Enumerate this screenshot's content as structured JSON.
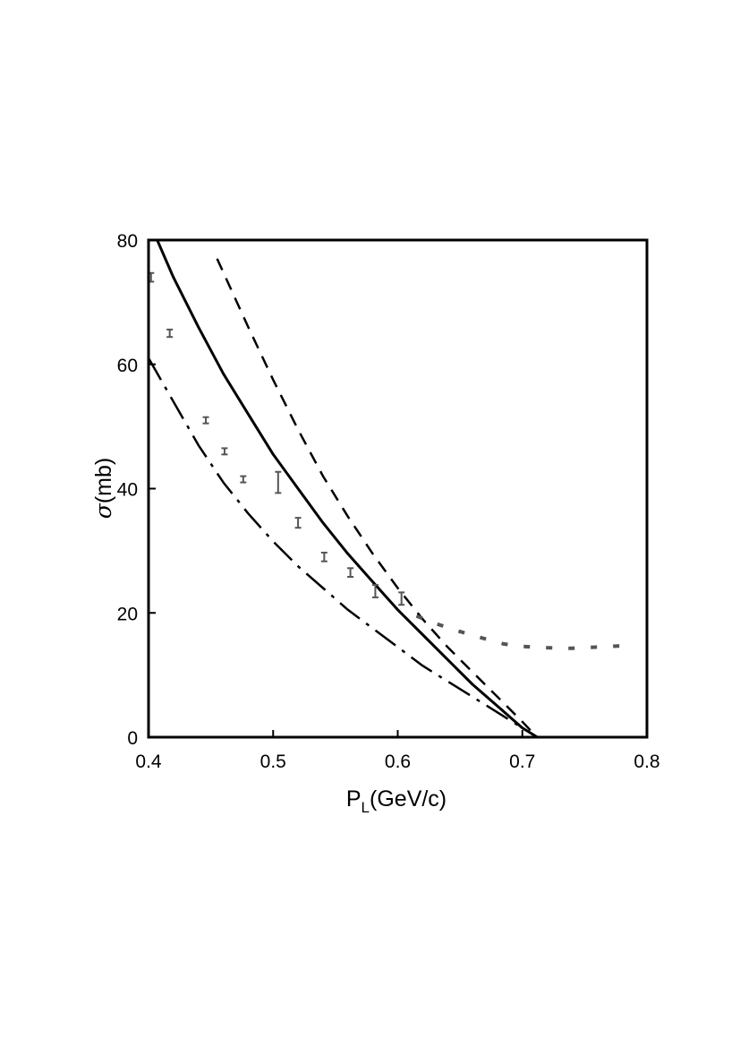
{
  "chart_data": {
    "type": "line",
    "title": "",
    "xlabel": {
      "main": "P",
      "sub": "L",
      "rest": "(GeV/c)"
    },
    "ylabel": {
      "symbol": "σ",
      "rest": "(mb)"
    },
    "xlim": [
      0.4,
      0.8
    ],
    "ylim": [
      0,
      80
    ],
    "xticks": [
      "0.4",
      "0.5",
      "0.6",
      "0.7",
      "0.8"
    ],
    "yticks": [
      "0",
      "20",
      "40",
      "60",
      "80"
    ],
    "grid": false,
    "legend": "none",
    "series": [
      {
        "style": "solid",
        "color": "#000000",
        "points": [
          [
            0.407,
            80
          ],
          [
            0.42,
            74
          ],
          [
            0.44,
            66
          ],
          [
            0.46,
            58.5
          ],
          [
            0.48,
            52
          ],
          [
            0.5,
            45.5
          ],
          [
            0.52,
            40
          ],
          [
            0.54,
            34.5
          ],
          [
            0.56,
            29.5
          ],
          [
            0.58,
            25
          ],
          [
            0.6,
            20.5
          ],
          [
            0.62,
            16.5
          ],
          [
            0.64,
            12.5
          ],
          [
            0.66,
            8.5
          ],
          [
            0.68,
            5
          ],
          [
            0.7,
            1.5
          ],
          [
            0.712,
            0
          ]
        ]
      },
      {
        "style": "dashed",
        "color": "#000000",
        "points": [
          [
            0.455,
            77
          ],
          [
            0.48,
            66
          ],
          [
            0.5,
            57.5
          ],
          [
            0.52,
            49.5
          ],
          [
            0.54,
            42
          ],
          [
            0.56,
            35.5
          ],
          [
            0.58,
            29.5
          ],
          [
            0.6,
            24
          ],
          [
            0.62,
            19
          ],
          [
            0.64,
            14.5
          ],
          [
            0.66,
            10.5
          ],
          [
            0.68,
            6.5
          ],
          [
            0.7,
            2.5
          ],
          [
            0.707,
            1
          ]
        ]
      },
      {
        "style": "dash-dot",
        "color": "#000000",
        "points": [
          [
            0.4,
            61
          ],
          [
            0.42,
            54
          ],
          [
            0.44,
            47
          ],
          [
            0.46,
            41
          ],
          [
            0.48,
            36
          ],
          [
            0.5,
            31.5
          ],
          [
            0.52,
            27.5
          ],
          [
            0.54,
            24
          ],
          [
            0.56,
            20.5
          ],
          [
            0.58,
            17.5
          ],
          [
            0.6,
            14.5
          ],
          [
            0.62,
            11.5
          ],
          [
            0.64,
            9
          ],
          [
            0.66,
            6.5
          ],
          [
            0.68,
            4
          ],
          [
            0.7,
            1.5
          ]
        ]
      },
      {
        "style": "dotted",
        "color": "#555555",
        "points": [
          [
            0.615,
            19.5
          ],
          [
            0.63,
            18.3
          ],
          [
            0.65,
            17
          ],
          [
            0.667,
            16
          ],
          [
            0.685,
            15
          ],
          [
            0.7,
            14.6
          ],
          [
            0.72,
            14.4
          ],
          [
            0.74,
            14.3
          ],
          [
            0.76,
            14.5
          ],
          [
            0.78,
            14.7
          ]
        ]
      }
    ],
    "data_points": {
      "color": "#555555",
      "points": [
        {
          "x": 0.402,
          "y": 74,
          "err": 0.7
        },
        {
          "x": 0.417,
          "y": 65,
          "err": 0.6
        },
        {
          "x": 0.446,
          "y": 51,
          "err": 0.5
        },
        {
          "x": 0.461,
          "y": 46,
          "err": 0.5
        },
        {
          "x": 0.476,
          "y": 41.5,
          "err": 0.5
        },
        {
          "x": 0.504,
          "y": 41,
          "err": 1.7
        },
        {
          "x": 0.52,
          "y": 34.5,
          "err": 0.8
        },
        {
          "x": 0.541,
          "y": 29,
          "err": 0.7
        },
        {
          "x": 0.562,
          "y": 26.5,
          "err": 0.7
        },
        {
          "x": 0.582,
          "y": 23.5,
          "err": 1.0
        },
        {
          "x": 0.603,
          "y": 22.3,
          "err": 1.0
        }
      ]
    }
  }
}
